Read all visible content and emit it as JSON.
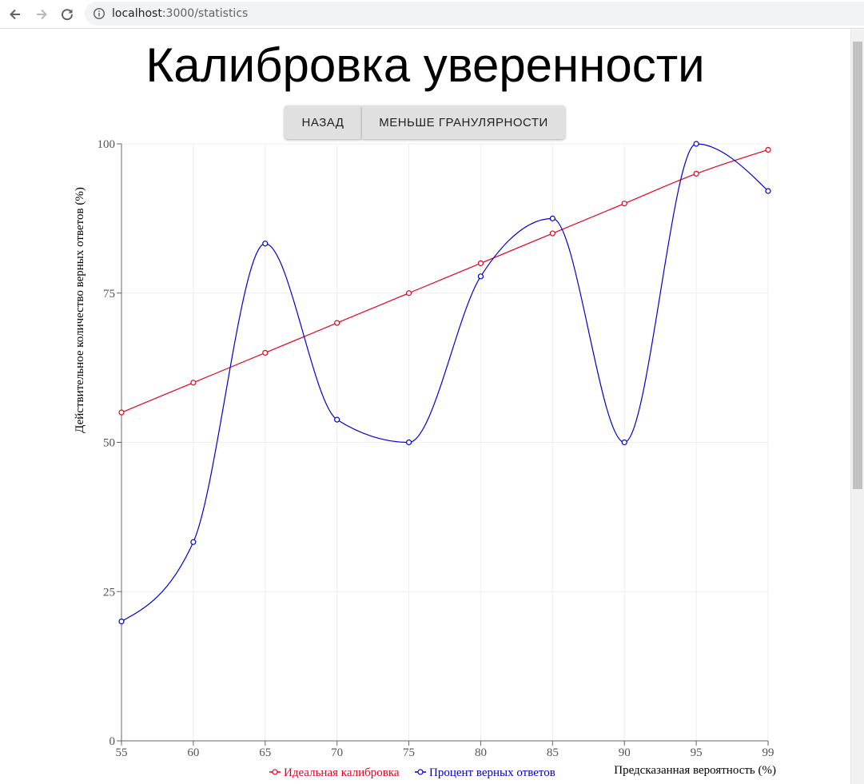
{
  "browser": {
    "url_host": "localhost",
    "url_path": ":3000/statistics"
  },
  "page": {
    "title": "Калибровка уверенности"
  },
  "buttons": {
    "back_label": "НАЗАД",
    "granularity_label": "МЕНЬШЕ ГРАНУЛЯРНОСТИ"
  },
  "chart_data": {
    "type": "line",
    "title": "",
    "xlabel": "Предсказанная вероятность (%)",
    "ylabel": "Действительное количество верных ответов (%)",
    "x": [
      55,
      60,
      65,
      70,
      75,
      80,
      85,
      90,
      95,
      99
    ],
    "ylim": [
      0,
      100
    ],
    "yticks": [
      0,
      25,
      50,
      75,
      100
    ],
    "grid": true,
    "legend": "bottom-center",
    "series": [
      {
        "name": "Идеальная калибровка",
        "color": "#e8001c",
        "values": [
          55,
          60,
          65,
          70,
          75,
          80,
          85,
          90,
          95,
          99
        ]
      },
      {
        "name": "Процент верных ответов",
        "color": "#0000cc",
        "values": [
          20,
          33.3,
          83.3,
          53.8,
          50,
          77.8,
          87.5,
          50,
          100,
          92.1
        ]
      }
    ]
  }
}
